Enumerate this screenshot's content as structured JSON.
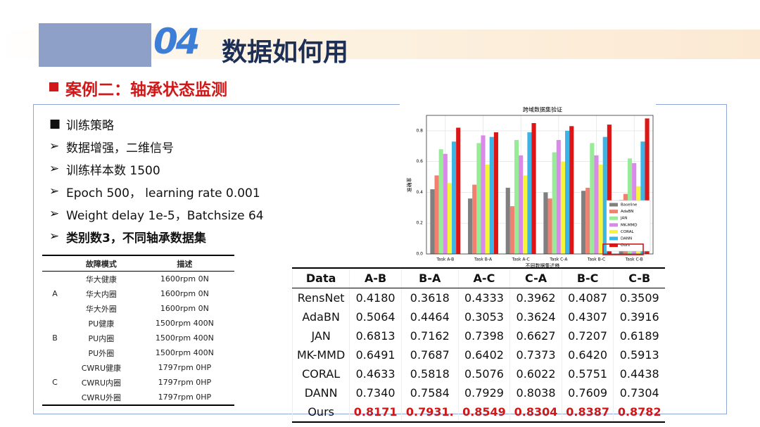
{
  "header": {
    "number": "04",
    "title": "数据如何用"
  },
  "section": {
    "title": "案例二：轴承状态监测"
  },
  "bullets": [
    "训练策略",
    "数据增强，二维信号",
    "训练样本数 1500",
    "Epoch 500，  learning rate 0.001",
    "Weight delay 1e-5，Batchsize 64",
    "类别数3，不同轴承数据集"
  ],
  "fault_table": {
    "header": [
      "故障模式",
      "描述"
    ],
    "groups": [
      {
        "label": "A",
        "rows": [
          [
            "华大健康",
            "1600rpm 0N"
          ],
          [
            "华大内圈",
            "1600rpm 0N"
          ],
          [
            "华大外圈",
            "1600rpm 0N"
          ]
        ]
      },
      {
        "label": "B",
        "rows": [
          [
            "PU健康",
            "1500rpm 400N"
          ],
          [
            "PU内圈",
            "1500rpm 400N"
          ],
          [
            "PU外圈",
            "1500rpm 400N"
          ]
        ]
      },
      {
        "label": "C",
        "rows": [
          [
            "CWRU健康",
            "1797rpm 0HP"
          ],
          [
            "CWRU内圈",
            "1797rpm 0HP"
          ],
          [
            "CWRU外圈",
            "1797rpm 0HP"
          ]
        ]
      }
    ]
  },
  "results_table": {
    "header": [
      "Data",
      "A-B",
      "B-A",
      "A-C",
      "C-A",
      "B-C",
      "C-B"
    ],
    "rows": [
      [
        "RensNet",
        "0.4180",
        "0.3618",
        "0.4333",
        "0.3962",
        "0.4087",
        "0.3509"
      ],
      [
        "AdaBN",
        "0.5064",
        "0.4464",
        "0.3053",
        "0.3624",
        "0.4307",
        "0.3916"
      ],
      [
        "JAN",
        "0.6813",
        "0.7162",
        "0.7398",
        "0.6627",
        "0.7207",
        "0.6189"
      ],
      [
        "MK-MMD",
        "0.6491",
        "0.7687",
        "0.6402",
        "0.7373",
        "0.6420",
        "0.5913"
      ],
      [
        "CORAL",
        "0.4633",
        "0.5818",
        "0.5076",
        "0.6022",
        "0.5751",
        "0.4438"
      ],
      [
        "DANN",
        "0.7340",
        "0.7584",
        "0.7929",
        "0.8038",
        "0.7609",
        "0.7304"
      ],
      [
        "Ours",
        "0.8171",
        "0.7931.",
        "0.8549",
        "0.8304",
        "0.8387",
        "0.8782"
      ]
    ]
  },
  "chart_data": {
    "type": "bar",
    "title": "跨域数据集验证",
    "x_label": "不同数据集迁移",
    "y_label": "准确率",
    "categories": [
      "Task A-B",
      "Task B-A",
      "Task A-C",
      "Task C-A",
      "Task B-C",
      "Task C-B"
    ],
    "series": [
      {
        "name": "Baseline",
        "color": "#808080",
        "values": [
          0.42,
          0.36,
          0.43,
          0.4,
          0.41,
          0.35
        ]
      },
      {
        "name": "AdaBN",
        "color": "#f08070",
        "values": [
          0.51,
          0.45,
          0.31,
          0.36,
          0.43,
          0.39
        ]
      },
      {
        "name": "JAN",
        "color": "#98ec98",
        "values": [
          0.68,
          0.72,
          0.74,
          0.66,
          0.72,
          0.62
        ]
      },
      {
        "name": "MK-MMD",
        "color": "#d98ae8",
        "values": [
          0.65,
          0.77,
          0.64,
          0.74,
          0.64,
          0.59
        ]
      },
      {
        "name": "CORAL",
        "color": "#f5f53a",
        "values": [
          0.46,
          0.58,
          0.51,
          0.6,
          0.58,
          0.44
        ]
      },
      {
        "name": "DANN",
        "color": "#3cb4e6",
        "values": [
          0.73,
          0.76,
          0.79,
          0.8,
          0.76,
          0.73
        ]
      },
      {
        "name": "Ours",
        "color": "#dd1515",
        "values": [
          0.82,
          0.79,
          0.85,
          0.83,
          0.84,
          0.88
        ]
      }
    ],
    "ylim": [
      0,
      0.9
    ],
    "yticks": [
      {
        "value": 0,
        "label": "0.0"
      },
      0.2,
      0.4,
      0.6,
      0.8
    ],
    "grid": true,
    "legend": "lower right"
  }
}
